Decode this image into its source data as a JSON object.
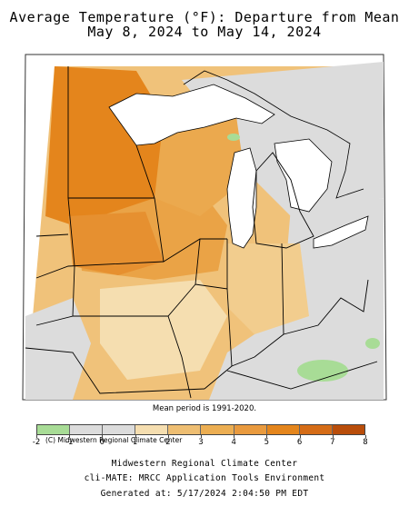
{
  "title": {
    "line1": "Average Temperature (°F): Departure from Mean",
    "line2": "May 8, 2024 to May 14, 2024"
  },
  "map": {
    "copyright": "(C) Midwestern Regional Climate Center",
    "mean_period": "Mean period is 1991-2020."
  },
  "legend": {
    "ticks": [
      "-2",
      "-1",
      "0",
      "1",
      "2",
      "3",
      "4",
      "5",
      "6",
      "7",
      "8"
    ],
    "colors": [
      "#a8dc96",
      "#dcdcdc",
      "#dcdcdc",
      "#f5deb0",
      "#eebe72",
      "#ecae52",
      "#e99a3e",
      "#e4851c",
      "#d56c16",
      "#b94d0a"
    ],
    "ocean_color": "#ffffff",
    "neutral_color": "#dcdcdc"
  },
  "footer": {
    "line1": "Midwestern Regional Climate Center",
    "line2": "cli-MATE: MRCC Application Tools Environment",
    "line3": "Generated at: 5/17/2024 2:04:50 PM EDT"
  }
}
